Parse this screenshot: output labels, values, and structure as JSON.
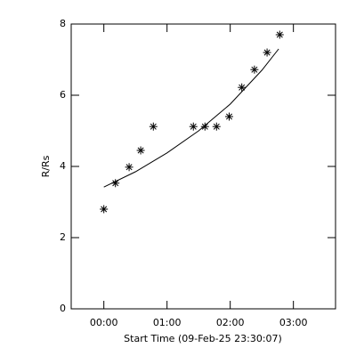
{
  "chart_data": {
    "type": "scatter",
    "x_label": "Start Time (09-Feb-25 23:30:07)",
    "y_label": "R/Rs",
    "x": [
      0,
      11,
      24,
      35,
      47,
      85,
      96,
      107,
      119,
      131,
      143,
      155,
      167
    ],
    "values": [
      2.8,
      3.53,
      3.98,
      4.45,
      5.12,
      5.12,
      5.12,
      5.12,
      5.4,
      6.22,
      6.72,
      7.2,
      7.7
    ],
    "color": "#000000",
    "fit": {
      "x": [
        0,
        30,
        60,
        90,
        120,
        150,
        166
      ],
      "values": [
        3.42,
        3.85,
        4.38,
        5.0,
        5.75,
        6.7,
        7.3
      ]
    },
    "xlim": [
      -31,
      220
    ],
    "ylim": [
      0,
      8
    ],
    "xticks": [
      {
        "value": 0,
        "label": "00:00"
      },
      {
        "value": 60,
        "label": "01:00"
      },
      {
        "value": 120,
        "label": "02:00"
      },
      {
        "value": 180,
        "label": "03:00"
      }
    ],
    "yticks": [
      0,
      2,
      4,
      6,
      8
    ]
  }
}
